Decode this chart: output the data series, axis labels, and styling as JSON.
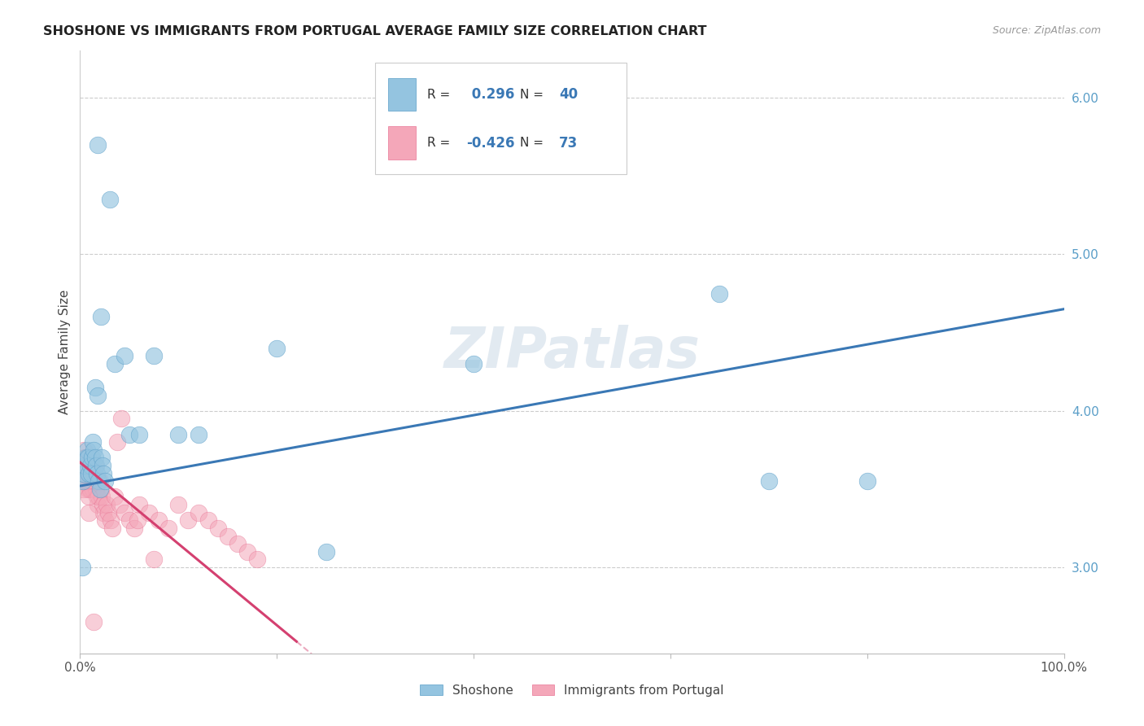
{
  "title": "SHOSHONE VS IMMIGRANTS FROM PORTUGAL AVERAGE FAMILY SIZE CORRELATION CHART",
  "source": "Source: ZipAtlas.com",
  "ylabel": "Average Family Size",
  "watermark": "ZIPatlas",
  "legend_label1": "Shoshone",
  "legend_label2": "Immigrants from Portugal",
  "R1": 0.296,
  "N1": 40,
  "R2": -0.426,
  "N2": 73,
  "blue_color": "#94c4e0",
  "pink_color": "#f4a7b9",
  "blue_edge_color": "#5a9ec8",
  "pink_edge_color": "#e87595",
  "blue_line_color": "#3a78b5",
  "pink_line_color": "#d44070",
  "xlim": [
    0,
    100
  ],
  "ylim": [
    2.45,
    6.3
  ],
  "yticks_right": [
    3.0,
    4.0,
    5.0,
    6.0
  ],
  "blue_trend_x0": 0,
  "blue_trend_y0": 3.52,
  "blue_trend_x1": 100,
  "blue_trend_y1": 4.65,
  "pink_trend_x0": 0,
  "pink_trend_y0": 3.67,
  "pink_trend_xsolid": 22,
  "pink_trend_xdash_end": 55,
  "blue_x": [
    0.3,
    0.4,
    0.5,
    0.6,
    0.7,
    0.8,
    0.9,
    1.0,
    1.1,
    1.2,
    1.3,
    1.4,
    1.5,
    1.6,
    1.7,
    1.8,
    1.9,
    2.0,
    2.1,
    2.2,
    2.3,
    2.4,
    2.5,
    3.0,
    3.5,
    4.5,
    5.0,
    6.0,
    7.5,
    10.0,
    12.0,
    20.0,
    25.0,
    40.0,
    65.0,
    70.0,
    80.0,
    1.5,
    1.8,
    0.2
  ],
  "blue_y": [
    3.55,
    3.6,
    3.65,
    3.7,
    3.75,
    3.7,
    3.6,
    3.65,
    3.6,
    3.7,
    3.8,
    3.75,
    3.7,
    3.65,
    3.6,
    5.7,
    3.55,
    3.5,
    4.6,
    3.7,
    3.65,
    3.6,
    3.55,
    5.35,
    4.3,
    4.35,
    3.85,
    3.85,
    4.35,
    3.85,
    3.85,
    4.4,
    3.1,
    4.3,
    4.75,
    3.55,
    3.55,
    4.15,
    4.1,
    3.0
  ],
  "pink_x": [
    0.1,
    0.15,
    0.2,
    0.25,
    0.3,
    0.35,
    0.4,
    0.45,
    0.5,
    0.55,
    0.6,
    0.65,
    0.7,
    0.75,
    0.8,
    0.85,
    0.9,
    0.95,
    1.0,
    1.05,
    1.1,
    1.15,
    1.2,
    1.25,
    1.3,
    1.4,
    1.5,
    1.6,
    1.7,
    1.8,
    1.9,
    2.0,
    2.1,
    2.2,
    2.3,
    2.4,
    2.5,
    2.7,
    2.9,
    3.1,
    3.3,
    3.5,
    4.0,
    4.5,
    5.0,
    5.5,
    6.0,
    7.0,
    8.0,
    9.0,
    10.0,
    11.0,
    12.0,
    13.0,
    14.0,
    15.0,
    16.0,
    17.0,
    18.0,
    3.8,
    4.2,
    5.8,
    7.5,
    0.2,
    0.3,
    0.4,
    0.5,
    0.6,
    0.7,
    0.8,
    0.85,
    0.9,
    1.35
  ],
  "pink_y": [
    3.55,
    3.6,
    3.6,
    3.65,
    3.65,
    3.6,
    3.6,
    3.7,
    3.65,
    3.6,
    3.65,
    3.7,
    3.6,
    3.55,
    3.5,
    3.6,
    3.55,
    3.5,
    3.55,
    3.5,
    3.7,
    3.65,
    3.6,
    3.55,
    3.5,
    3.6,
    3.65,
    3.5,
    3.45,
    3.4,
    3.45,
    3.55,
    3.5,
    3.45,
    3.4,
    3.35,
    3.3,
    3.4,
    3.35,
    3.3,
    3.25,
    3.45,
    3.4,
    3.35,
    3.3,
    3.25,
    3.4,
    3.35,
    3.3,
    3.25,
    3.4,
    3.3,
    3.35,
    3.3,
    3.25,
    3.2,
    3.15,
    3.1,
    3.05,
    3.8,
    3.95,
    3.3,
    3.05,
    3.65,
    3.5,
    3.75,
    3.6,
    3.7,
    3.65,
    3.55,
    3.45,
    3.35,
    2.65
  ]
}
